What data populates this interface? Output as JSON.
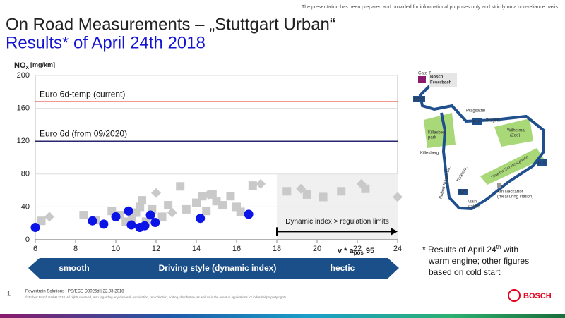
{
  "header": {
    "disclaimer": "The presentation has been prepared and provided for informational purposes only and strictly on a non-reliance basis",
    "title": "On Road Measurements – „Stuttgart Urban“",
    "subtitle": "Results* of April 24th 2018"
  },
  "chart_data": {
    "type": "scatter",
    "ylabel": {
      "main": "NO",
      "sub": "x",
      "unit": "[mg/km]"
    },
    "xlabel": {
      "main": "v * a",
      "sub": "pos",
      "rest": "95"
    },
    "xlim": [
      6,
      24
    ],
    "xticks": [
      6,
      8,
      10,
      12,
      14,
      16,
      18,
      20,
      22,
      24
    ],
    "ylim": [
      0,
      200
    ],
    "yticks": [
      0,
      40,
      80,
      120,
      160,
      200
    ],
    "reference_lines": [
      {
        "label": "Euro 6d-temp (current)",
        "value": 168,
        "color": "#e8302a"
      },
      {
        "label": "Euro 6d (from 09/2020)",
        "value": 120,
        "color": "#2b2670"
      }
    ],
    "region": {
      "xlim": [
        18,
        24
      ],
      "ylim": [
        0,
        80
      ],
      "color": "#f0f0f0"
    },
    "annotation": {
      "text": "Dynamic index > regulation limits",
      "x": [
        18,
        24
      ],
      "y": 10
    },
    "series": [
      {
        "marker": "square",
        "color": "#c9c9c9",
        "x": [
          6.3,
          8.4,
          9.0,
          9.8,
          10.2,
          10.5,
          10.8,
          11.0,
          11.2,
          11.3,
          11.5,
          11.8,
          12.3,
          12.6,
          13.2,
          13.5,
          14.0,
          14.3,
          14.5,
          14.8,
          15.0,
          15.3,
          15.7,
          16.0,
          16.2,
          16.8,
          18.5,
          19.5,
          20.3,
          21.2,
          22.4
        ],
        "values": [
          23,
          30,
          24,
          35,
          30,
          22,
          27,
          33,
          40,
          48,
          22,
          37,
          28,
          42,
          65,
          37,
          45,
          53,
          35,
          55,
          47,
          42,
          53,
          40,
          34,
          66,
          59,
          55,
          52,
          59,
          62
        ]
      },
      {
        "marker": "diamond",
        "color": "#c9c9c9",
        "x": [
          6.7,
          12.0,
          12.8,
          14.6,
          17.2,
          19.2,
          22.2,
          24
        ],
        "values": [
          28,
          57,
          33,
          55,
          68,
          62,
          68,
          52
        ]
      },
      {
        "marker": "circle",
        "color": "#0a14e6",
        "x": [
          6.0,
          8.84,
          9.4,
          10.0,
          10.63,
          10.77,
          11.19,
          11.44,
          11.72,
          11.96,
          14.2,
          16.6
        ],
        "values": [
          15,
          23,
          19,
          28,
          35,
          18,
          15,
          17,
          30,
          21,
          26,
          31
        ]
      }
    ],
    "style_band": {
      "left": "smooth",
      "center": "Driving style (dynamic index)",
      "right": "hectic"
    }
  },
  "note": {
    "a": "* Results of April 24",
    "sup": "th",
    "b": " with",
    "line2": "warm engine; other figures",
    "line3": "based on cold start"
  },
  "map": {
    "labels": [
      "Gate 7",
      "Bosch",
      "Feuerbach",
      "B295",
      "Pragsattel",
      "B10",
      "Pragstr.",
      "Wilhelma",
      "(Zoo)",
      "Killesberg",
      "park",
      "Killesberg",
      "Robert-Mayer-Str.",
      "Türlenstr.",
      "B27",
      "Unterer Schlossgarten",
      "B14",
      "Am Neckartor",
      "(measuring station)",
      "Main",
      "station"
    ]
  },
  "footer": {
    "page": "1",
    "ref": "Powertrain Solutions | PS/ECE D3026d | 22.03.2018",
    "copyright": "© Robert Bosch GmbH 2018. All rights reserved, also regarding any disposal, exploitation, reproduction, editing, distribution, as well as in the event of applications for industrial property rights.",
    "brand": "BOSCH"
  }
}
